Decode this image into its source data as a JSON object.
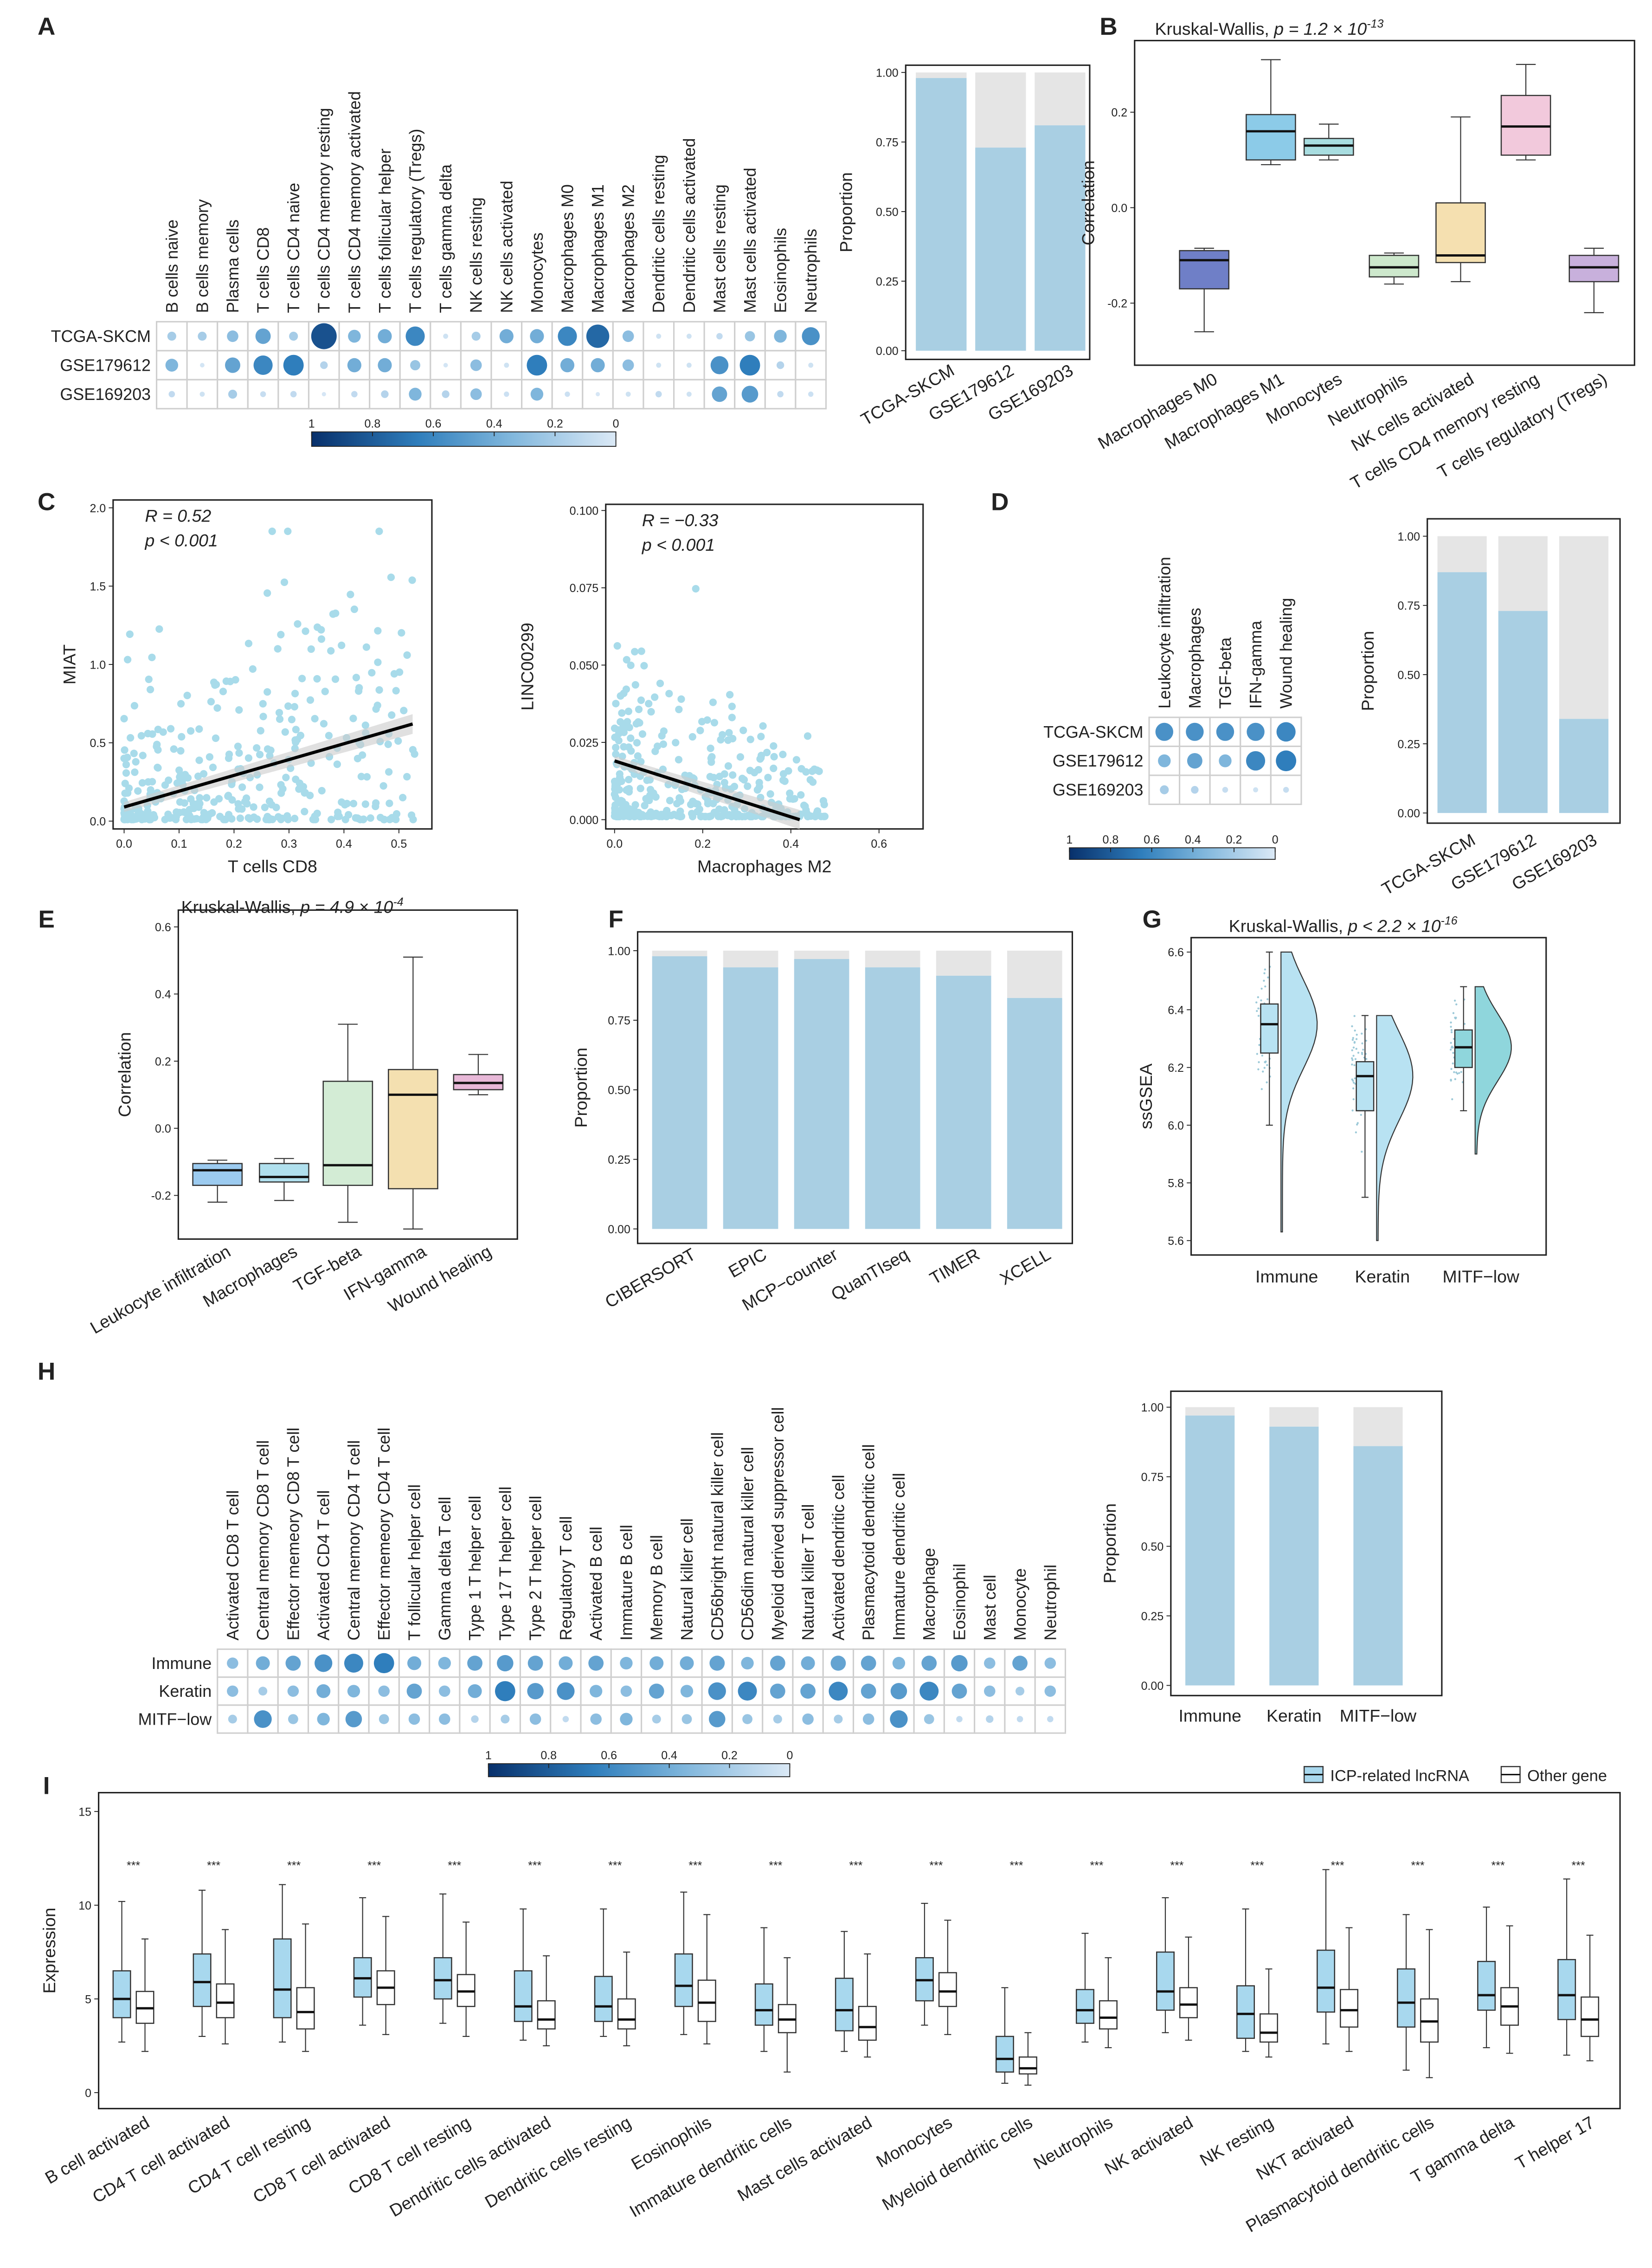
{
  "panels": [
    "A",
    "B",
    "C",
    "D",
    "E",
    "F",
    "G",
    "H",
    "I"
  ],
  "chart_data": [
    {
      "type": "heatmap",
      "id": "A-dots",
      "rows": [
        "TCGA-SKCM",
        "GSE179612",
        "GSE169203"
      ],
      "columns": [
        "B cells naive",
        "B cells memory",
        "Plasma cells",
        "T cells CD8",
        "T cells CD4 naive",
        "T cells CD4 memory resting",
        "T cells CD4 memory activated",
        "T cells follicular helper",
        "T cells regulatory (Tregs)",
        "T cells gamma delta",
        "NK cells resting",
        "NK cells activated",
        "Monocytes",
        "Macrophages M0",
        "Macrophages M1",
        "Macrophages M2",
        "Dendritic cells resting",
        "Dendritic cells activated",
        "Mast cells resting",
        "Mast cells activated",
        "Eosinophils",
        "Neutrophils"
      ],
      "values": [
        [
          0.2,
          0.2,
          0.3,
          0.45,
          0.2,
          0.85,
          0.35,
          0.4,
          0.6,
          0.05,
          0.2,
          0.4,
          0.4,
          0.6,
          0.75,
          0.3,
          0.05,
          0.05,
          0.1,
          0.25,
          0.35,
          0.55
        ],
        [
          0.35,
          0.03,
          0.45,
          0.6,
          0.65,
          0.15,
          0.4,
          0.4,
          0.25,
          0.03,
          0.3,
          0.05,
          0.65,
          0.4,
          0.4,
          0.3,
          0.05,
          0.05,
          0.55,
          0.65,
          0.15,
          0.05
        ],
        [
          0.1,
          0.05,
          0.2,
          0.08,
          0.1,
          0.02,
          0.1,
          0.15,
          0.35,
          0.15,
          0.3,
          0.06,
          0.35,
          0.06,
          0.02,
          0.05,
          0.1,
          0.05,
          0.45,
          0.5,
          0.1,
          0.06
        ]
      ],
      "legend_ticks": [
        "1",
        "0.8",
        "0.6",
        "0.4",
        "0.2",
        "0"
      ]
    },
    {
      "type": "bar",
      "id": "A-bars",
      "categories": [
        "TCGA-SKCM",
        "GSE179612",
        "GSE169203"
      ],
      "values": [
        0.98,
        0.73,
        0.81
      ],
      "ylabel": "Proportion",
      "ylim": [
        0,
        1
      ],
      "yticks": [
        0,
        0.25,
        0.5,
        0.75,
        1
      ],
      "yticks_labels": [
        "0.00",
        "0.25",
        "0.50",
        "0.75",
        "1.00"
      ]
    },
    {
      "type": "box",
      "id": "B",
      "title_prefix": "Kruskal-Wallis, ",
      "title_p": "p = 1.2 × 10",
      "title_exp": "-13",
      "ylabel": "Correlation",
      "yticks": [
        -0.2,
        0,
        0.2
      ],
      "yticks_labels": [
        "-0.2",
        "0.0",
        "0.2"
      ],
      "ylim": [
        -0.33,
        0.35
      ],
      "categories": [
        "Macrophages M0",
        "Macrophages M1",
        "Monocytes",
        "Neutrophils",
        "NK cells activated",
        "T cells CD4 memory resting",
        "T cells regulatory (Tregs)"
      ],
      "stats": [
        [
          -0.26,
          -0.17,
          -0.11,
          -0.09,
          -0.085
        ],
        [
          0.09,
          0.1,
          0.16,
          0.195,
          0.31
        ],
        [
          0.1,
          0.11,
          0.13,
          0.145,
          0.175
        ],
        [
          -0.16,
          -0.145,
          -0.125,
          -0.1,
          -0.095
        ],
        [
          -0.155,
          -0.115,
          -0.1,
          0.01,
          0.19
        ],
        [
          0.1,
          0.11,
          0.17,
          0.235,
          0.3
        ],
        [
          -0.22,
          -0.155,
          -0.125,
          -0.1,
          -0.085
        ]
      ],
      "colors": [
        "#6f7fc7",
        "#8ccbe8",
        "#a8dde0",
        "#cde8cc",
        "#f5e0b0",
        "#f2c9dc",
        "#c8b0dc"
      ]
    },
    {
      "type": "scatter",
      "id": "C1",
      "xlabel": "T cells CD8",
      "ylabel": "MIAT",
      "R": "R = 0.52",
      "p": "p < 0.001",
      "fit": [
        [
          0,
          0.09
        ],
        [
          0.525,
          0.62
        ]
      ],
      "xlim": [
        -0.02,
        0.56
      ],
      "ylim": [
        -0.05,
        2.05
      ],
      "xticks": [
        0,
        0.1,
        0.2,
        0.3,
        0.4,
        0.5
      ],
      "xticks_labels": [
        "0.0",
        "0.1",
        "0.2",
        "0.3",
        "0.4",
        "0.5"
      ],
      "yticks": [
        0,
        0.5,
        1,
        1.5,
        2
      ],
      "yticks_labels": [
        "0.0",
        "0.5",
        "1.0",
        "1.5",
        "2.0"
      ]
    },
    {
      "type": "scatter",
      "id": "C2",
      "xlabel": "Macrophages M2",
      "ylabel": "LINC00299",
      "R": "R = −0.33",
      "p": "p < 0.001",
      "fit": [
        [
          0,
          0.019
        ],
        [
          0.42,
          0.0
        ]
      ],
      "xlim": [
        -0.02,
        0.7
      ],
      "ylim": [
        -0.003,
        0.102
      ],
      "xticks": [
        0,
        0.2,
        0.4,
        0.6
      ],
      "xticks_labels": [
        "0.0",
        "0.2",
        "0.4",
        "0.6"
      ],
      "yticks": [
        0,
        0.025,
        0.05,
        0.075,
        0.1
      ],
      "yticks_labels": [
        "0.000",
        "0.025",
        "0.050",
        "0.075",
        "0.100"
      ]
    },
    {
      "type": "heatmap",
      "id": "D-dots",
      "rows": [
        "TCGA-SKCM",
        "GSE179612",
        "GSE169203"
      ],
      "columns": [
        "Leukocyte infiltration",
        "Macrophages",
        "TGF-beta",
        "IFN-gamma",
        "Wound healing"
      ],
      "values": [
        [
          0.55,
          0.55,
          0.55,
          0.55,
          0.6
        ],
        [
          0.35,
          0.45,
          0.35,
          0.6,
          0.65
        ],
        [
          0.2,
          0.15,
          0.08,
          0.05,
          0.08
        ]
      ],
      "legend_ticks": [
        "1",
        "0.8",
        "0.6",
        "0.4",
        "0.2",
        "0"
      ]
    },
    {
      "type": "bar",
      "id": "D-bars",
      "categories": [
        "TCGA-SKCM",
        "GSE179612",
        "GSE169203"
      ],
      "values": [
        0.87,
        0.73,
        0.34
      ],
      "ylabel": "Proportion",
      "ylim": [
        0,
        1
      ],
      "yticks": [
        0,
        0.25,
        0.5,
        0.75,
        1
      ],
      "yticks_labels": [
        "0.00",
        "0.25",
        "0.50",
        "0.75",
        "1.00"
      ]
    },
    {
      "type": "box",
      "id": "E",
      "title_prefix": "Kruskal-Wallis, ",
      "title_p": "p = 4.9 × 10",
      "title_exp": "-4",
      "ylabel": "Correlation",
      "yticks": [
        -0.2,
        0,
        0.2,
        0.4,
        0.6
      ],
      "yticks_labels": [
        "-0.2",
        "0.0",
        "0.2",
        "0.4",
        "0.6"
      ],
      "ylim": [
        -0.33,
        0.65
      ],
      "categories": [
        "Leukocyte infiltration",
        "Macrophages",
        "TGF-beta",
        "IFN-gamma",
        "Wound healing"
      ],
      "stats": [
        [
          -0.22,
          -0.17,
          -0.125,
          -0.105,
          -0.095
        ],
        [
          -0.215,
          -0.16,
          -0.145,
          -0.105,
          -0.09
        ],
        [
          -0.28,
          -0.17,
          -0.11,
          0.14,
          0.31
        ],
        [
          -0.3,
          -0.18,
          0.1,
          0.175,
          0.51
        ],
        [
          0.1,
          0.115,
          0.135,
          0.16,
          0.22
        ]
      ],
      "colors": [
        "#9ccbf0",
        "#b0e0ee",
        "#d3ecd5",
        "#f4e0b0",
        "#e8b8d8"
      ]
    },
    {
      "type": "bar",
      "id": "F",
      "categories": [
        "CIBERSORT",
        "EPIC",
        "MCP−counter",
        "QuanTIseq",
        "TIMER",
        "XCELL"
      ],
      "values": [
        0.98,
        0.94,
        0.97,
        0.94,
        0.91,
        0.83
      ],
      "ylabel": "Proportion",
      "ylim": [
        0,
        1
      ],
      "yticks": [
        0,
        0.25,
        0.5,
        0.75,
        1
      ],
      "yticks_labels": [
        "0.00",
        "0.25",
        "0.50",
        "0.75",
        "1.00"
      ]
    },
    {
      "type": "box",
      "id": "G",
      "title_prefix": "Kruskal-Wallis, ",
      "title_p": "p < 2.2 × 10",
      "title_exp": "-16",
      "ylabel": "ssGSEA",
      "yticks": [
        5.6,
        5.8,
        6.0,
        6.2,
        6.4,
        6.6
      ],
      "yticks_labels": [
        "5.6",
        "5.8",
        "6.0",
        "6.2",
        "6.4",
        "6.6"
      ],
      "ylim": [
        5.55,
        6.65
      ],
      "categories": [
        "Immune",
        "Keratin",
        "MITF−low"
      ],
      "stats": [
        [
          6.0,
          6.25,
          6.35,
          6.42,
          6.6
        ],
        [
          5.75,
          6.05,
          6.17,
          6.22,
          6.38
        ],
        [
          6.05,
          6.2,
          6.27,
          6.33,
          6.48
        ]
      ],
      "violin_range": [
        [
          5.63,
          6.6
        ],
        [
          5.6,
          6.38
        ],
        [
          5.9,
          6.48
        ]
      ],
      "colors": [
        "#b8e2f2",
        "#b8e2f2",
        "#8fd6dc"
      ]
    },
    {
      "type": "heatmap",
      "id": "H-dots",
      "rows": [
        "Immune",
        "Keratin",
        "MITF−low"
      ],
      "columns": [
        "Activated CD8 T cell",
        "Central memory CD8 T cell",
        "Effector memeory CD8 T cell",
        "Activated CD4 T cell",
        "Central memory CD4 T cell",
        "Effector memeory CD4 T cell",
        "T follicular helper cell",
        "Gamma delta T cell",
        "Type 1 T helper cell",
        "Type 17 T helper cell",
        "Type 2 T helper cell",
        "Regulatory T cell",
        "Activated B cell",
        "Immature  B cell",
        "Memory B cell",
        "Natural killer cell",
        "CD56bright natural killer cell",
        "CD56dim natural killer cell",
        "Myeloid derived suppressor cell",
        "Natural killer T cell",
        "Activated dendritic cell",
        "Plasmacytoid dendritic cell",
        "Immature dendritic cell",
        "Macrophage",
        "Eosinophil",
        "Mast cell",
        "Monocyte",
        "Neutrophil"
      ],
      "values": [
        [
          0.3,
          0.4,
          0.45,
          0.55,
          0.6,
          0.65,
          0.4,
          0.35,
          0.45,
          0.5,
          0.45,
          0.4,
          0.45,
          0.35,
          0.4,
          0.4,
          0.45,
          0.35,
          0.45,
          0.4,
          0.45,
          0.45,
          0.35,
          0.45,
          0.5,
          0.3,
          0.45,
          0.3
        ],
        [
          0.3,
          0.2,
          0.3,
          0.4,
          0.35,
          0.3,
          0.45,
          0.3,
          0.4,
          0.65,
          0.5,
          0.55,
          0.35,
          0.3,
          0.45,
          0.35,
          0.55,
          0.6,
          0.45,
          0.45,
          0.6,
          0.45,
          0.5,
          0.6,
          0.45,
          0.3,
          0.2,
          0.3
        ],
        [
          0.2,
          0.55,
          0.25,
          0.35,
          0.5,
          0.25,
          0.3,
          0.3,
          0.15,
          0.2,
          0.3,
          0.1,
          0.3,
          0.35,
          0.2,
          0.25,
          0.5,
          0.25,
          0.2,
          0.3,
          0.2,
          0.3,
          0.55,
          0.25,
          0.1,
          0.15,
          0.1,
          0.1
        ]
      ],
      "legend_ticks": [
        "1",
        "0.8",
        "0.6",
        "0.4",
        "0.2",
        "0"
      ]
    },
    {
      "type": "bar",
      "id": "H-bars",
      "categories": [
        "Immune",
        "Keratin",
        "MITF−low"
      ],
      "values": [
        0.97,
        0.93,
        0.86
      ],
      "ylabel": "Proportion",
      "ylim": [
        0,
        1
      ],
      "yticks": [
        0,
        0.25,
        0.5,
        0.75,
        1
      ],
      "yticks_labels": [
        "0.00",
        "0.25",
        "0.50",
        "0.75",
        "1.00"
      ]
    },
    {
      "type": "box",
      "id": "I",
      "ylabel": "Expression",
      "legend": [
        "ICP-related lncRNA",
        "Other gene"
      ],
      "sig": "***",
      "yticks": [
        0,
        5,
        10,
        15
      ],
      "yticks_labels": [
        "0",
        "5",
        "10",
        "15"
      ],
      "ylim": [
        -0.8,
        15
      ],
      "categories": [
        "B cell activated",
        "CD4 T cell activated",
        "CD4 T cell resting",
        "CD8 T cell activated",
        "CD8 T cell resting",
        "Dendritic cells activated",
        "Dendritic cells resting",
        "Eosinophils",
        "Immature dendritic cells",
        "Mast cells activated",
        "Monocytes",
        "Myeloid dendritic cells",
        "Neutrophils",
        "NK activated",
        "NK resting",
        "NKT activated",
        "Plasmacytoid dendritic cells",
        "T gamma delta",
        "T helper 17"
      ],
      "lnc": [
        [
          2.7,
          4.0,
          5.0,
          6.5,
          10.2
        ],
        [
          3.0,
          4.6,
          5.9,
          7.4,
          10.8
        ],
        [
          2.7,
          4.0,
          5.5,
          8.2,
          11.1
        ],
        [
          3.6,
          5.1,
          6.1,
          7.2,
          10.4
        ],
        [
          3.7,
          5.0,
          6.0,
          7.2,
          10.6
        ],
        [
          2.8,
          3.8,
          4.6,
          6.5,
          9.8
        ],
        [
          3.0,
          3.8,
          4.6,
          6.2,
          9.8
        ],
        [
          3.1,
          4.6,
          5.7,
          7.4,
          10.7
        ],
        [
          2.2,
          3.6,
          4.4,
          5.8,
          8.8
        ],
        [
          2.2,
          3.3,
          4.4,
          6.1,
          8.6
        ],
        [
          3.6,
          4.9,
          6.0,
          7.2,
          10.1
        ],
        [
          0.5,
          1.1,
          1.8,
          3.0,
          5.6
        ],
        [
          2.7,
          3.7,
          4.4,
          5.5,
          8.5
        ],
        [
          3.2,
          4.4,
          5.4,
          7.5,
          10.4
        ],
        [
          2.2,
          2.9,
          4.2,
          5.7,
          9.8
        ],
        [
          2.6,
          4.3,
          5.6,
          7.6,
          11.9
        ],
        [
          1.2,
          3.5,
          4.8,
          6.6,
          9.5
        ],
        [
          2.4,
          4.4,
          5.2,
          7.0,
          9.9
        ],
        [
          2.0,
          3.9,
          5.2,
          7.1,
          11.4
        ]
      ],
      "other": [
        [
          2.2,
          3.7,
          4.5,
          5.4,
          8.2
        ],
        [
          2.6,
          4.0,
          4.8,
          5.8,
          8.7
        ],
        [
          2.2,
          3.4,
          4.3,
          5.6,
          9.0
        ],
        [
          3.1,
          4.7,
          5.6,
          6.5,
          9.4
        ],
        [
          3.0,
          4.6,
          5.4,
          6.3,
          9.1
        ],
        [
          2.5,
          3.4,
          3.9,
          4.9,
          7.3
        ],
        [
          2.5,
          3.4,
          3.9,
          5.0,
          7.5
        ],
        [
          2.6,
          3.8,
          4.8,
          6.0,
          9.5
        ],
        [
          1.1,
          3.2,
          3.9,
          4.7,
          7.2
        ],
        [
          1.9,
          2.8,
          3.5,
          4.6,
          7.4
        ],
        [
          3.1,
          4.6,
          5.4,
          6.4,
          9.2
        ],
        [
          0.4,
          1.0,
          1.3,
          1.9,
          3.2
        ],
        [
          2.4,
          3.4,
          4.0,
          4.9,
          7.2
        ],
        [
          2.8,
          4.0,
          4.7,
          5.6,
          8.3
        ],
        [
          1.9,
          2.7,
          3.2,
          4.2,
          6.6
        ],
        [
          2.2,
          3.5,
          4.4,
          5.5,
          8.8
        ],
        [
          0.8,
          2.7,
          3.8,
          5.0,
          8.7
        ],
        [
          2.1,
          3.6,
          4.6,
          5.6,
          8.9
        ],
        [
          1.7,
          3.0,
          3.9,
          5.1,
          8.4
        ]
      ],
      "colors": {
        "lnc": "#a8d8ee",
        "other": "#ffffff"
      }
    }
  ]
}
